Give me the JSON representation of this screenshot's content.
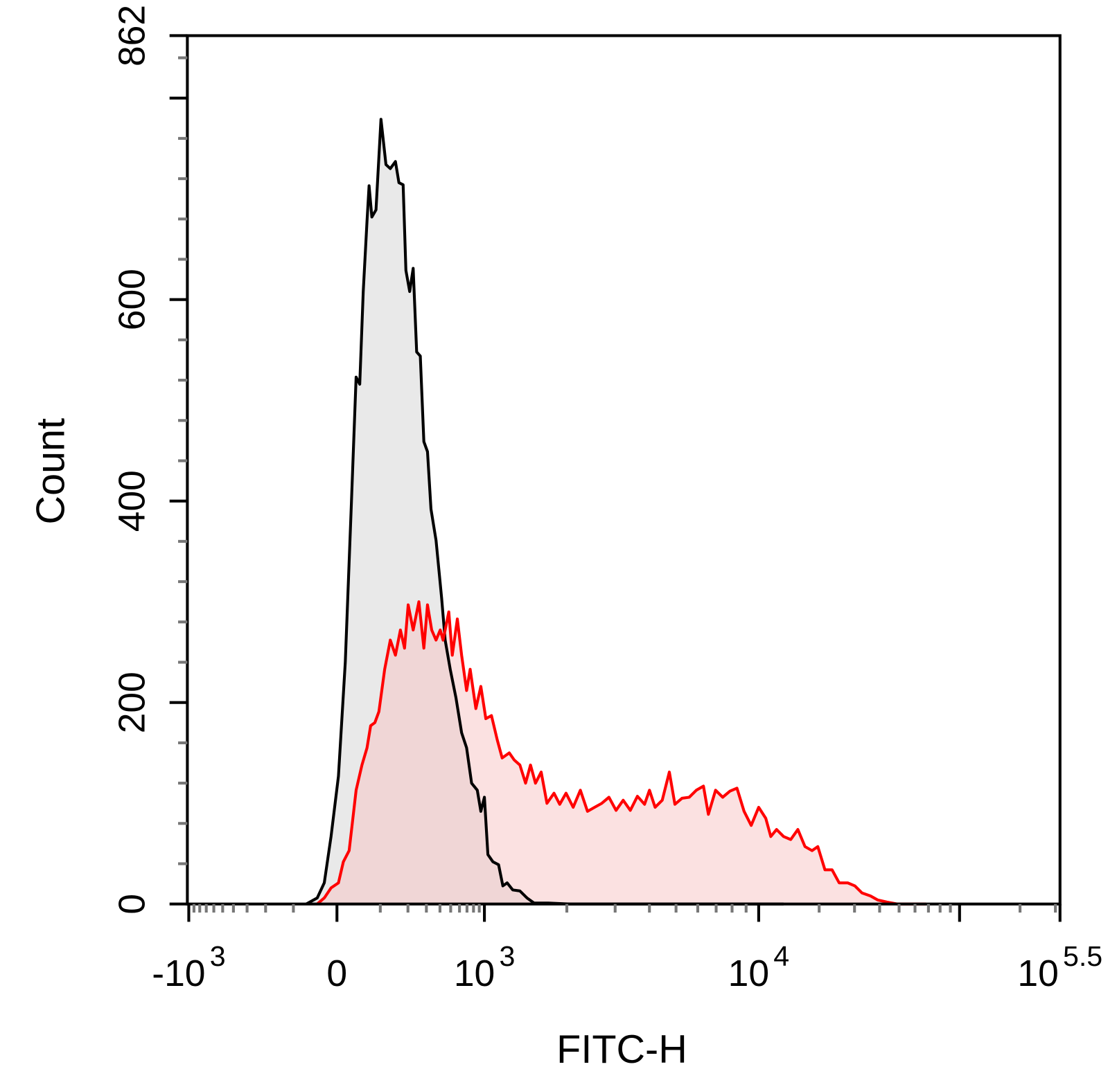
{
  "chart_data": {
    "type": "histogram-overlay",
    "xlabel": "FITC-H",
    "ylabel": "Count",
    "xscale": "biexponential",
    "xlim": [
      -1000,
      316228
    ],
    "ylim": [
      0,
      862
    ],
    "xticks": [
      {
        "value": -1000,
        "label": "-10",
        "sup": "3"
      },
      0,
      {
        "value": 1000,
        "label": "10",
        "sup": "3"
      },
      {
        "value": 10000,
        "label": "10",
        "sup": "4"
      },
      {
        "value": 100000,
        "label": null
      },
      {
        "value": 316228,
        "label": "10",
        "sup": "5.5"
      }
    ],
    "xminor": [
      -900,
      -800,
      -700,
      -600,
      -500,
      -400,
      -300,
      -200,
      -100,
      100,
      200,
      300,
      400,
      500,
      600,
      700,
      800,
      900,
      2000,
      3000,
      4000,
      5000,
      6000,
      7000,
      8000,
      9000,
      20000,
      30000,
      40000,
      50000,
      60000,
      70000,
      80000,
      90000,
      200000,
      300000
    ],
    "yticks": [
      0,
      200,
      400,
      600,
      {
        "value": 800,
        "label": null
      },
      862
    ],
    "yminor": [
      40,
      80,
      120,
      160,
      240,
      280,
      320,
      360,
      440,
      480,
      520,
      560,
      640,
      680,
      720,
      760,
      840
    ],
    "series": [
      {
        "color": "#000000",
        "fill": "#d4d4d4",
        "x": [
          -66,
          -41,
          -26,
          -12,
          3,
          17,
          29,
          40,
          48,
          56,
          65,
          70,
          77,
          88,
          102,
          117,
          131,
          149,
          162,
          179,
          191,
          208,
          225,
          243,
          263,
          284,
          307,
          331,
          368,
          414,
          446,
          495,
          557,
          627,
          694,
          769,
          864,
          930,
          1000,
          1030,
          1074,
          1127,
          1168,
          1211,
          1270,
          1348,
          1431,
          1519,
          1712,
          2047,
          13310
        ],
        "values": [
          0,
          6,
          21,
          67,
          127,
          240,
          389,
          523,
          516,
          608,
          678,
          713,
          682,
          689,
          779,
          734,
          730,
          737,
          716,
          714,
          629,
          608,
          631,
          548,
          544,
          459,
          449,
          392,
          361,
          304,
          262,
          233,
          205,
          170,
          155,
          120,
          113,
          92,
          106,
          49,
          42,
          39,
          18,
          21,
          14,
          13,
          6,
          1,
          1,
          0,
          0
        ]
      },
      {
        "color": "#ff0000",
        "fill": "#f7c4c4",
        "x": [
          -41,
          -26,
          -12,
          3,
          13,
          25,
          32,
          40,
          53,
          65,
          74,
          85,
          96,
          113,
          131,
          149,
          168,
          185,
          201,
          225,
          255,
          284,
          307,
          336,
          368,
          402,
          427,
          481,
          517,
          574,
          627,
          694,
          747,
          839,
          930,
          1012,
          1061,
          1114,
          1161,
          1233,
          1285,
          1348,
          1414,
          1474,
          1537,
          1612,
          1692,
          1796,
          1884,
          1987,
          2109,
          2240,
          2379,
          2525,
          2682,
          2847,
          3023,
          3209,
          3407,
          3617,
          3840,
          4002,
          4194,
          4452,
          4727,
          4954,
          5259,
          5584,
          5928,
          6293,
          6560,
          6965,
          7394,
          7850,
          8333,
          8847,
          9393,
          10000,
          10850,
          11490,
          12270,
          13310,
          14440,
          15670,
          17000,
          18450,
          19700,
          21370,
          23190,
          25160,
          27760,
          30120,
          32680,
          36050,
          39110,
          43480,
          49140,
          68120
        ],
        "values": [
          0,
          6,
          16,
          21,
          42,
          53,
          81,
          113,
          138,
          155,
          177,
          180,
          191,
          233,
          262,
          247,
          272,
          254,
          297,
          272,
          300,
          254,
          297,
          272,
          262,
          272,
          262,
          290,
          247,
          283,
          247,
          212,
          233,
          194,
          216,
          184,
          187,
          163,
          145,
          150,
          143,
          138,
          120,
          138,
          120,
          131,
          100,
          110,
          99,
          110,
          96,
          113,
          92,
          96,
          100,
          106,
          93,
          103,
          93,
          107,
          99,
          113,
          96,
          103,
          131,
          99,
          105,
          106,
          113,
          117,
          89,
          113,
          106,
          112,
          115,
          92,
          78,
          96,
          85,
          67,
          74,
          67,
          64,
          74,
          57,
          53,
          57,
          34,
          34,
          21,
          21,
          18,
          11,
          8,
          4,
          2,
          0,
          0
        ]
      }
    ]
  }
}
